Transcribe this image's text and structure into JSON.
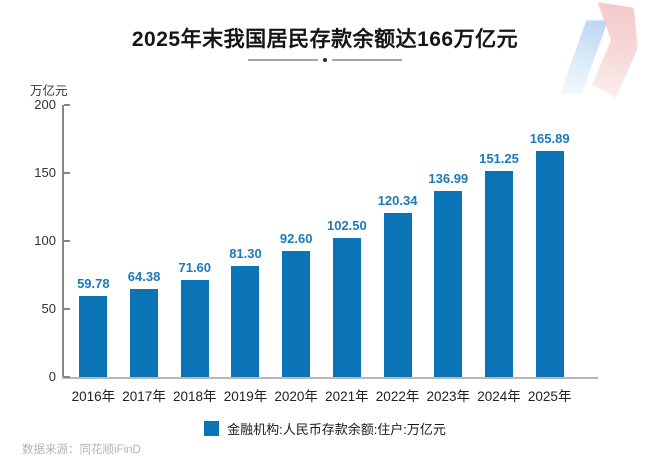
{
  "header": {
    "title": "2025年末我国居民存款余额达166万亿元"
  },
  "chart_data": {
    "type": "bar",
    "title": "2025年末我国居民存款余额达166万亿元",
    "unit_label": "万亿元",
    "categories": [
      "2016年",
      "2017年",
      "2018年",
      "2019年",
      "2020年",
      "2021年",
      "2022年",
      "2023年",
      "2024年",
      "2025年"
    ],
    "values": [
      59.78,
      64.38,
      71.6,
      81.3,
      92.6,
      102.5,
      120.34,
      136.99,
      151.25,
      165.89
    ],
    "value_label_decimals": 2,
    "ylim": [
      0,
      200
    ],
    "yticks": [
      0,
      50,
      100,
      150,
      200
    ],
    "grid": false,
    "legend_position": "bottom",
    "bar_color": "#0b74b6",
    "value_label_color": "#1e79b9"
  },
  "legend": {
    "label": "金融机构:人民币存款余额:住户:万亿元"
  },
  "footer": {
    "source": "数据来源：同花顺iFinD"
  }
}
